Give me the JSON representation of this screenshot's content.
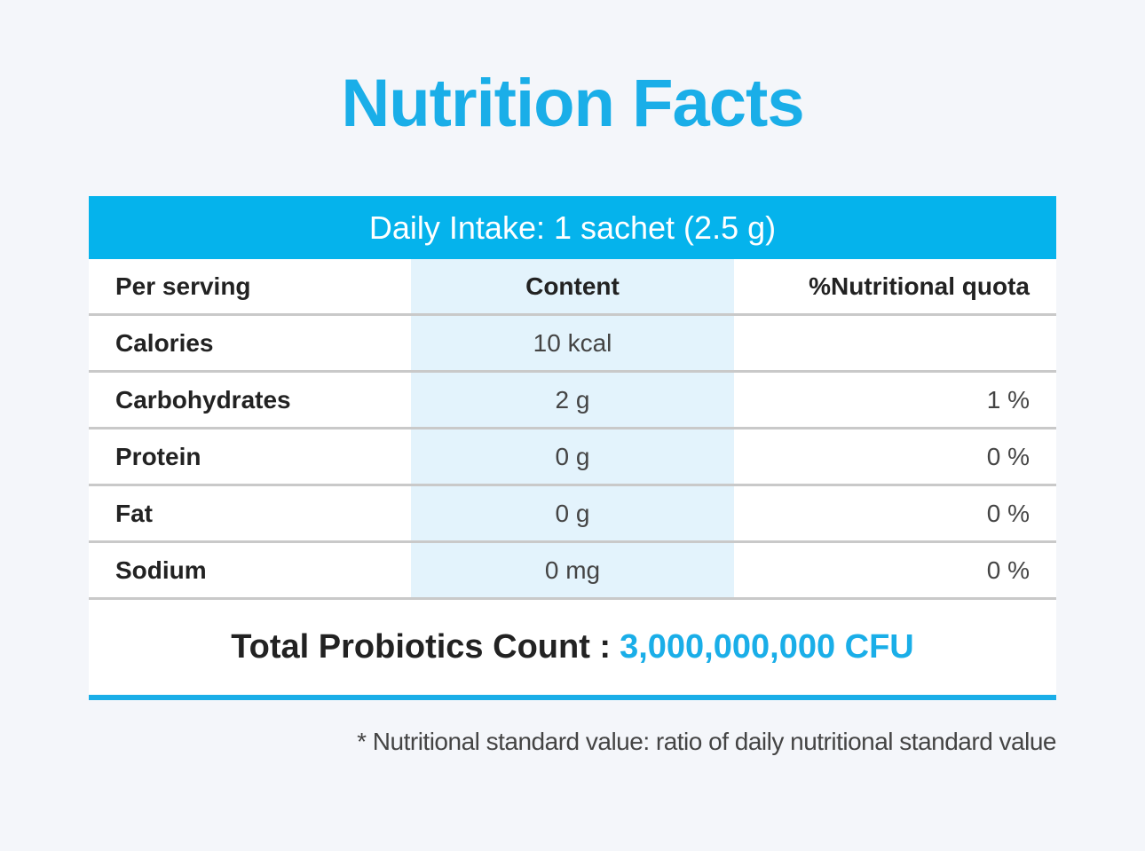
{
  "title": "Nutrition Facts",
  "daily_intake": "Daily Intake: 1 sachet (2.5 g)",
  "table": {
    "headers": [
      "Per serving",
      "Content",
      "%Nutritional quota"
    ],
    "rows": [
      {
        "name": "Calories",
        "content": "10 kcal",
        "quota": ""
      },
      {
        "name": "Carbohydrates",
        "content": "2 g",
        "quota": "1 %"
      },
      {
        "name": "Protein",
        "content": "0 g",
        "quota": "0 %"
      },
      {
        "name": "Fat",
        "content": "0 g",
        "quota": "0 %"
      },
      {
        "name": "Sodium",
        "content": "0 mg",
        "quota": "0 %"
      }
    ]
  },
  "total": {
    "label": "Total Probiotics Count :",
    "value": "3,000,000,000 CFU"
  },
  "footnote": "* Nutritional standard value: ratio of daily nutritional standard value",
  "colors": {
    "accent": "#1aaee8",
    "header_bar": "#05b3ec",
    "content_column": "#e3f3fc",
    "background": "#f4f6fa"
  }
}
